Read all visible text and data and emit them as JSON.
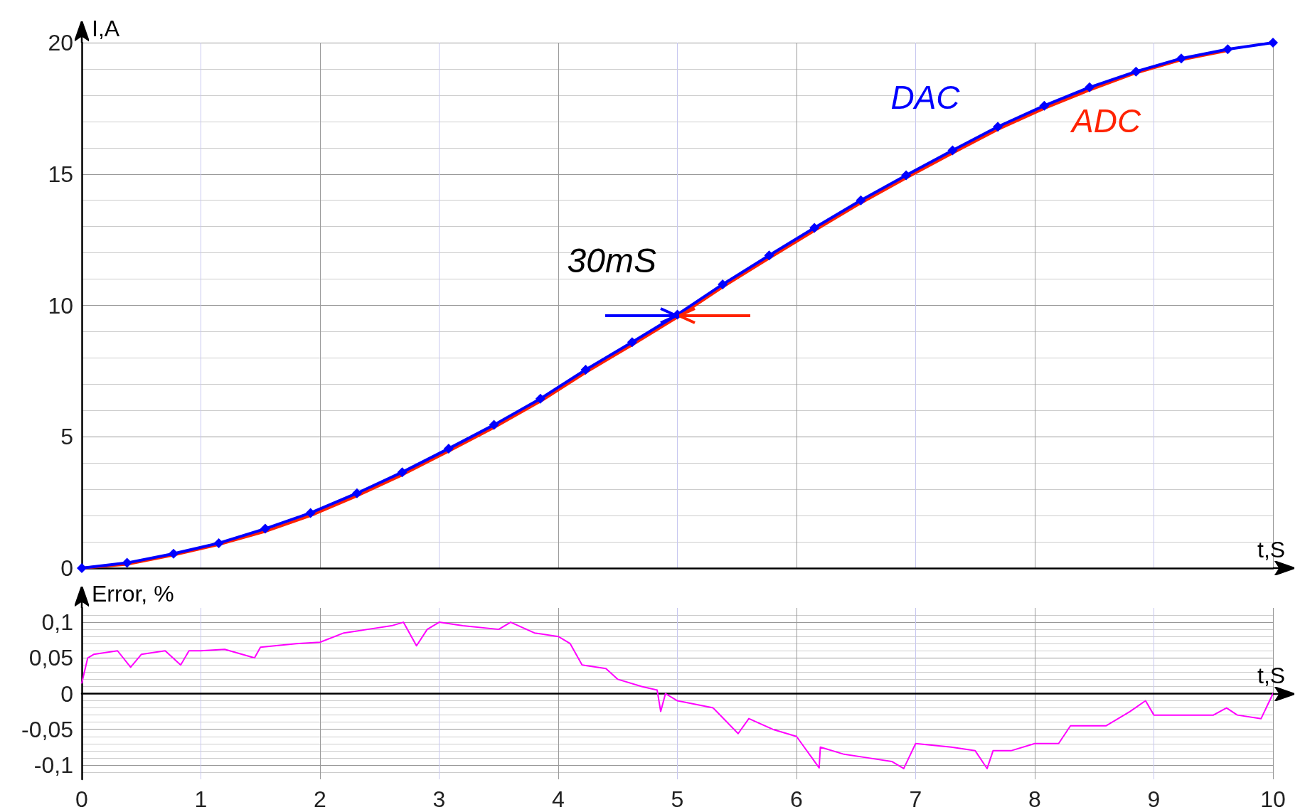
{
  "chart_data": [
    {
      "type": "line",
      "xlabel": "t,S",
      "ylabel": "I,A",
      "xlim": [
        0,
        10
      ],
      "xticks": [
        0,
        1,
        2,
        3,
        4,
        5,
        6,
        7,
        8,
        9,
        10
      ],
      "ylim": [
        0,
        20
      ],
      "yticks": [
        0,
        5,
        10,
        15,
        20
      ],
      "tick_labels": "y",
      "grid": true,
      "legend": false,
      "annotations": [
        {
          "text": "30mS",
          "x": 5,
          "y": 9.6
        }
      ],
      "series": [
        {
          "name": "DAC",
          "color": "#0000ff",
          "marker": "diamond",
          "x": [
            0,
            0.38,
            0.77,
            1.15,
            1.54,
            1.92,
            2.31,
            2.69,
            3.08,
            3.46,
            3.85,
            4.23,
            4.62,
            5,
            5.38,
            5.77,
            6.15,
            6.54,
            6.92,
            7.31,
            7.69,
            8.08,
            8.46,
            8.85,
            9.23,
            9.62,
            10
          ],
          "values": [
            0,
            0.2,
            0.55,
            0.95,
            1.5,
            2.1,
            2.85,
            3.65,
            4.55,
            5.45,
            6.45,
            7.55,
            8.6,
            9.65,
            10.8,
            11.9,
            12.95,
            14,
            14.95,
            15.9,
            16.8,
            17.6,
            18.3,
            18.9,
            19.4,
            19.75,
            20
          ]
        },
        {
          "name": "ADC",
          "color": "#ff2200",
          "marker": "none",
          "x": [
            0,
            0.38,
            0.77,
            1.15,
            1.54,
            1.92,
            2.31,
            2.69,
            3.08,
            3.46,
            3.85,
            4.23,
            4.62,
            5,
            5.38,
            5.77,
            6.15,
            6.54,
            6.92,
            7.31,
            7.69,
            8.08,
            8.46,
            8.85,
            9.23,
            9.62
          ],
          "values": [
            0,
            0.15,
            0.5,
            0.9,
            1.4,
            2,
            2.75,
            3.55,
            4.45,
            5.35,
            6.35,
            7.45,
            8.5,
            9.55,
            10.7,
            11.8,
            12.85,
            13.9,
            14.85,
            15.8,
            16.7,
            17.5,
            18.2,
            18.85,
            19.35,
            19.7
          ]
        }
      ]
    },
    {
      "type": "line",
      "xlabel": "t,S",
      "ylabel": "Error, %",
      "xlim": [
        0,
        10
      ],
      "xticks": [
        0,
        1,
        2,
        3,
        4,
        5,
        6,
        7,
        8,
        9,
        10
      ],
      "ylim": [
        -0.12,
        0.12
      ],
      "yticks": [
        {
          "value": -0.1,
          "label": "-0,1"
        },
        {
          "value": -0.05,
          "label": "-0,05"
        },
        0,
        {
          "value": 0.05,
          "label": "0,05"
        },
        {
          "value": 0.1,
          "label": "0,1"
        }
      ],
      "grid": true,
      "legend": false,
      "series": [
        {
          "color": "#ff00ff",
          "marker": "none",
          "x": [
            0,
            0.05,
            0.1,
            0.3,
            0.41,
            0.5,
            0.7,
            0.83,
            0.9,
            1.0,
            1.2,
            1.45,
            1.5,
            1.8,
            2.0,
            2.2,
            2.4,
            2.6,
            2.7,
            2.81,
            2.9,
            3.0,
            3.2,
            3.5,
            3.6,
            3.8,
            4.0,
            4.1,
            4.2,
            4.4,
            4.5,
            4.7,
            4.83,
            4.86,
            4.9,
            5.0,
            5.3,
            5.51,
            5.6,
            5.8,
            6.0,
            6.19,
            6.2,
            6.4,
            6.6,
            6.8,
            6.9,
            7.0,
            7.3,
            7.5,
            7.6,
            7.65,
            7.8,
            8.0,
            8.2,
            8.3,
            8.6,
            8.8,
            8.93,
            9.0,
            9.3,
            9.5,
            9.61,
            9.7,
            9.9,
            10
          ],
          "values": [
            0.015,
            0.05,
            0.055,
            0.06,
            0.037,
            0.055,
            0.06,
            0.04,
            0.06,
            0.06,
            0.062,
            0.05,
            0.065,
            0.07,
            0.072,
            0.085,
            0.09,
            0.095,
            0.1,
            0.067,
            0.09,
            0.1,
            0.095,
            0.09,
            0.1,
            0.085,
            0.08,
            0.07,
            0.04,
            0.035,
            0.02,
            0.01,
            0.005,
            -0.025,
            0,
            -0.01,
            -0.02,
            -0.056,
            -0.035,
            -0.05,
            -0.06,
            -0.104,
            -0.075,
            -0.085,
            -0.09,
            -0.095,
            -0.105,
            -0.07,
            -0.075,
            -0.08,
            -0.105,
            -0.08,
            -0.08,
            -0.07,
            -0.07,
            -0.045,
            -0.045,
            -0.025,
            -0.01,
            -0.03,
            -0.03,
            -0.03,
            -0.02,
            -0.03,
            -0.035,
            0
          ]
        }
      ]
    }
  ]
}
